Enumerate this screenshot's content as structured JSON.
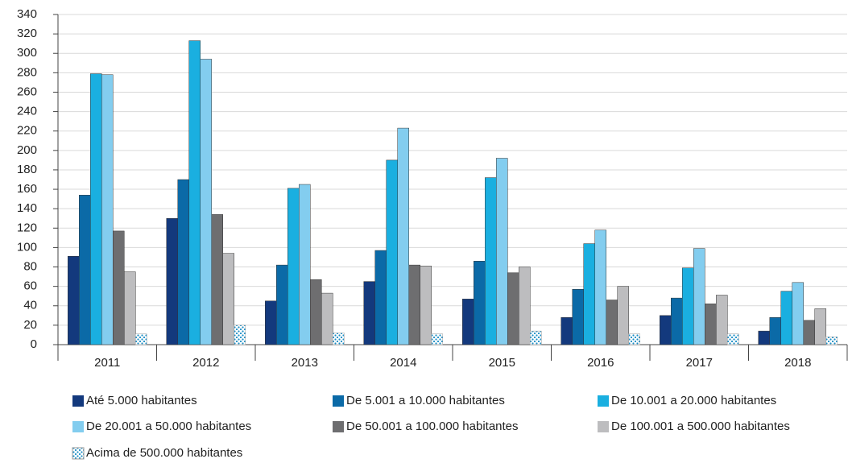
{
  "chart_data": {
    "type": "bar",
    "categories": [
      "2011",
      "2012",
      "2013",
      "2014",
      "2015",
      "2016",
      "2017",
      "2018"
    ],
    "series": [
      {
        "name": "Até 5.000 habitantes",
        "color": "#13397d",
        "values": [
          91,
          130,
          45,
          65,
          47,
          28,
          30,
          14
        ]
      },
      {
        "name": "De 5.001 a 10.000 habitantes",
        "color": "#0b6aa7",
        "values": [
          154,
          170,
          82,
          97,
          86,
          57,
          48,
          28
        ]
      },
      {
        "name": "De 10.001 a 20.000 habitantes",
        "color": "#1aafe0",
        "values": [
          279,
          313,
          161,
          190,
          172,
          104,
          79,
          55
        ]
      },
      {
        "name": "De 20.001 a 50.000 habitantes",
        "color": "#83cdef",
        "values": [
          278,
          294,
          165,
          223,
          192,
          118,
          99,
          64
        ]
      },
      {
        "name": "De 50.001 a 100.000 habitantes",
        "color": "#6e6e70",
        "values": [
          117,
          134,
          67,
          82,
          74,
          46,
          42,
          25
        ]
      },
      {
        "name": "De 100.001 a 500.000 habitantes",
        "color": "#bdbdbf",
        "values": [
          75,
          94,
          53,
          81,
          80,
          60,
          51,
          37
        ]
      },
      {
        "name": "Acima de 500.000 habitantes",
        "color": "#1d8fc6",
        "pattern": "dots",
        "values": [
          11,
          20,
          12,
          11,
          14,
          11,
          11,
          8
        ]
      }
    ],
    "ylim": [
      0,
      340
    ],
    "yticks": [
      0,
      20,
      40,
      60,
      80,
      100,
      120,
      140,
      160,
      180,
      200,
      220,
      240,
      260,
      280,
      300,
      320,
      340
    ],
    "grid": true,
    "legend": "bottom"
  }
}
